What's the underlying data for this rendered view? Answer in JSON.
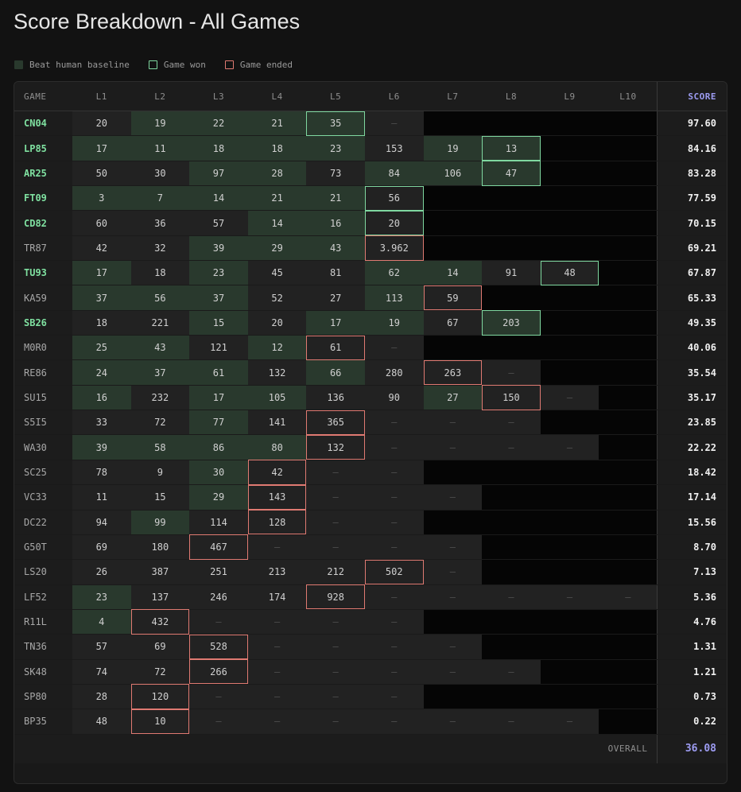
{
  "title": "Score Breakdown - All Games",
  "legend": {
    "beat": "Beat human baseline",
    "won": "Game won",
    "ended": "Game ended"
  },
  "colors": {
    "beat_fill": "#29392d",
    "won_border": "#7fd8a0",
    "ended_border": "#e07a72",
    "score_accent": "#9d9cf2",
    "won_game_text": "#7fe0a0"
  },
  "columns": [
    "GAME",
    "L1",
    "L2",
    "L3",
    "L4",
    "L5",
    "L6",
    "L7",
    "L8",
    "L9",
    "L10",
    "SCORE"
  ],
  "cell_legend": {
    "B": "beat human baseline",
    "W": "game won at this level",
    "E": "game ended at this level",
    "D": "dash — level reached but no value",
    "X": "level not available"
  },
  "rows": [
    {
      "game": "CN04",
      "won": true,
      "score": "97.60",
      "cells": [
        [
          "20",
          ""
        ],
        [
          "19",
          "B"
        ],
        [
          "22",
          "B"
        ],
        [
          "21",
          "B"
        ],
        [
          "35",
          "BW"
        ],
        [
          "—",
          "D"
        ],
        [
          "",
          "X"
        ],
        [
          "",
          "X"
        ],
        [
          "",
          "X"
        ],
        [
          "",
          "X"
        ]
      ]
    },
    {
      "game": "LP85",
      "won": true,
      "score": "84.16",
      "cells": [
        [
          "17",
          "B"
        ],
        [
          "11",
          "B"
        ],
        [
          "18",
          "B"
        ],
        [
          "18",
          "B"
        ],
        [
          "23",
          "B"
        ],
        [
          "153",
          ""
        ],
        [
          "19",
          "B"
        ],
        [
          "13",
          "BW"
        ],
        [
          "",
          "X"
        ],
        [
          "",
          "X"
        ]
      ]
    },
    {
      "game": "AR25",
      "won": true,
      "score": "83.28",
      "cells": [
        [
          "50",
          ""
        ],
        [
          "30",
          ""
        ],
        [
          "97",
          "B"
        ],
        [
          "28",
          "B"
        ],
        [
          "73",
          ""
        ],
        [
          "84",
          "B"
        ],
        [
          "106",
          "B"
        ],
        [
          "47",
          "BW"
        ],
        [
          "",
          "X"
        ],
        [
          "",
          "X"
        ]
      ]
    },
    {
      "game": "FT09",
      "won": true,
      "score": "77.59",
      "cells": [
        [
          "3",
          "B"
        ],
        [
          "7",
          "B"
        ],
        [
          "14",
          "B"
        ],
        [
          "21",
          "B"
        ],
        [
          "21",
          "B"
        ],
        [
          "56",
          "W"
        ],
        [
          "",
          "X"
        ],
        [
          "",
          "X"
        ],
        [
          "",
          "X"
        ],
        [
          "",
          "X"
        ]
      ]
    },
    {
      "game": "CD82",
      "won": true,
      "score": "70.15",
      "cells": [
        [
          "60",
          ""
        ],
        [
          "36",
          ""
        ],
        [
          "57",
          ""
        ],
        [
          "14",
          "B"
        ],
        [
          "16",
          "B"
        ],
        [
          "20",
          "W"
        ],
        [
          "",
          "X"
        ],
        [
          "",
          "X"
        ],
        [
          "",
          "X"
        ],
        [
          "",
          "X"
        ]
      ]
    },
    {
      "game": "TR87",
      "won": false,
      "score": "69.21",
      "cells": [
        [
          "42",
          ""
        ],
        [
          "32",
          ""
        ],
        [
          "39",
          "B"
        ],
        [
          "29",
          "B"
        ],
        [
          "43",
          "B"
        ],
        [
          "3.962",
          "E"
        ],
        [
          "",
          "X"
        ],
        [
          "",
          "X"
        ],
        [
          "",
          "X"
        ],
        [
          "",
          "X"
        ]
      ]
    },
    {
      "game": "TU93",
      "won": true,
      "score": "67.87",
      "cells": [
        [
          "17",
          "B"
        ],
        [
          "18",
          ""
        ],
        [
          "23",
          "B"
        ],
        [
          "45",
          ""
        ],
        [
          "81",
          ""
        ],
        [
          "62",
          "B"
        ],
        [
          "14",
          "B"
        ],
        [
          "91",
          ""
        ],
        [
          "48",
          "W"
        ],
        [
          "",
          "X"
        ]
      ]
    },
    {
      "game": "KA59",
      "won": false,
      "score": "65.33",
      "cells": [
        [
          "37",
          "B"
        ],
        [
          "56",
          "B"
        ],
        [
          "37",
          "B"
        ],
        [
          "52",
          ""
        ],
        [
          "27",
          ""
        ],
        [
          "113",
          "B"
        ],
        [
          "59",
          "E"
        ],
        [
          "",
          "X"
        ],
        [
          "",
          "X"
        ],
        [
          "",
          "X"
        ]
      ]
    },
    {
      "game": "SB26",
      "won": true,
      "score": "49.35",
      "cells": [
        [
          "18",
          ""
        ],
        [
          "221",
          ""
        ],
        [
          "15",
          "B"
        ],
        [
          "20",
          ""
        ],
        [
          "17",
          "B"
        ],
        [
          "19",
          "B"
        ],
        [
          "67",
          ""
        ],
        [
          "203",
          "BW"
        ],
        [
          "",
          "X"
        ],
        [
          "",
          "X"
        ]
      ]
    },
    {
      "game": "M0R0",
      "won": false,
      "score": "40.06",
      "cells": [
        [
          "25",
          "B"
        ],
        [
          "43",
          "B"
        ],
        [
          "121",
          ""
        ],
        [
          "12",
          "B"
        ],
        [
          "61",
          "E"
        ],
        [
          "—",
          "D"
        ],
        [
          "",
          "X"
        ],
        [
          "",
          "X"
        ],
        [
          "",
          "X"
        ],
        [
          "",
          "X"
        ]
      ]
    },
    {
      "game": "RE86",
      "won": false,
      "score": "35.54",
      "cells": [
        [
          "24",
          "B"
        ],
        [
          "37",
          "B"
        ],
        [
          "61",
          "B"
        ],
        [
          "132",
          ""
        ],
        [
          "66",
          "B"
        ],
        [
          "280",
          ""
        ],
        [
          "263",
          "E"
        ],
        [
          "—",
          "D"
        ],
        [
          "",
          "X"
        ],
        [
          "",
          "X"
        ]
      ]
    },
    {
      "game": "SU15",
      "won": false,
      "score": "35.17",
      "cells": [
        [
          "16",
          "B"
        ],
        [
          "232",
          ""
        ],
        [
          "17",
          "B"
        ],
        [
          "105",
          "B"
        ],
        [
          "136",
          ""
        ],
        [
          "90",
          ""
        ],
        [
          "27",
          "B"
        ],
        [
          "150",
          "E"
        ],
        [
          "—",
          "D"
        ],
        [
          "",
          "X"
        ]
      ]
    },
    {
      "game": "S5I5",
      "won": false,
      "score": "23.85",
      "cells": [
        [
          "33",
          ""
        ],
        [
          "72",
          ""
        ],
        [
          "77",
          "B"
        ],
        [
          "141",
          ""
        ],
        [
          "365",
          "E"
        ],
        [
          "—",
          "D"
        ],
        [
          "—",
          "D"
        ],
        [
          "—",
          "D"
        ],
        [
          "",
          "X"
        ],
        [
          "",
          "X"
        ]
      ]
    },
    {
      "game": "WA30",
      "won": false,
      "score": "22.22",
      "cells": [
        [
          "39",
          "B"
        ],
        [
          "58",
          "B"
        ],
        [
          "86",
          "B"
        ],
        [
          "80",
          "B"
        ],
        [
          "132",
          "E"
        ],
        [
          "—",
          "D"
        ],
        [
          "—",
          "D"
        ],
        [
          "—",
          "D"
        ],
        [
          "—",
          "D"
        ],
        [
          "",
          "X"
        ]
      ]
    },
    {
      "game": "SC25",
      "won": false,
      "score": "18.42",
      "cells": [
        [
          "78",
          ""
        ],
        [
          "9",
          ""
        ],
        [
          "30",
          "B"
        ],
        [
          "42",
          "E"
        ],
        [
          "—",
          "D"
        ],
        [
          "—",
          "D"
        ],
        [
          "",
          "X"
        ],
        [
          "",
          "X"
        ],
        [
          "",
          "X"
        ],
        [
          "",
          "X"
        ]
      ]
    },
    {
      "game": "VC33",
      "won": false,
      "score": "17.14",
      "cells": [
        [
          "11",
          ""
        ],
        [
          "15",
          ""
        ],
        [
          "29",
          "B"
        ],
        [
          "143",
          "E"
        ],
        [
          "—",
          "D"
        ],
        [
          "—",
          "D"
        ],
        [
          "—",
          "D"
        ],
        [
          "",
          "X"
        ],
        [
          "",
          "X"
        ],
        [
          "",
          "X"
        ]
      ]
    },
    {
      "game": "DC22",
      "won": false,
      "score": "15.56",
      "cells": [
        [
          "94",
          ""
        ],
        [
          "99",
          "B"
        ],
        [
          "114",
          ""
        ],
        [
          "128",
          "E"
        ],
        [
          "—",
          "D"
        ],
        [
          "—",
          "D"
        ],
        [
          "",
          "X"
        ],
        [
          "",
          "X"
        ],
        [
          "",
          "X"
        ],
        [
          "",
          "X"
        ]
      ]
    },
    {
      "game": "G50T",
      "won": false,
      "score": "8.70",
      "cells": [
        [
          "69",
          ""
        ],
        [
          "180",
          ""
        ],
        [
          "467",
          "E"
        ],
        [
          "—",
          "D"
        ],
        [
          "—",
          "D"
        ],
        [
          "—",
          "D"
        ],
        [
          "—",
          "D"
        ],
        [
          "",
          "X"
        ],
        [
          "",
          "X"
        ],
        [
          "",
          "X"
        ]
      ]
    },
    {
      "game": "LS20",
      "won": false,
      "score": "7.13",
      "cells": [
        [
          "26",
          ""
        ],
        [
          "387",
          ""
        ],
        [
          "251",
          ""
        ],
        [
          "213",
          ""
        ],
        [
          "212",
          ""
        ],
        [
          "502",
          "E"
        ],
        [
          "—",
          "D"
        ],
        [
          "",
          "X"
        ],
        [
          "",
          "X"
        ],
        [
          "",
          "X"
        ]
      ]
    },
    {
      "game": "LF52",
      "won": false,
      "score": "5.36",
      "cells": [
        [
          "23",
          "B"
        ],
        [
          "137",
          ""
        ],
        [
          "246",
          ""
        ],
        [
          "174",
          ""
        ],
        [
          "928",
          "E"
        ],
        [
          "—",
          "D"
        ],
        [
          "—",
          "D"
        ],
        [
          "—",
          "D"
        ],
        [
          "—",
          "D"
        ],
        [
          "—",
          "D"
        ]
      ]
    },
    {
      "game": "R11L",
      "won": false,
      "score": "4.76",
      "cells": [
        [
          "4",
          "B"
        ],
        [
          "432",
          "E"
        ],
        [
          "—",
          "D"
        ],
        [
          "—",
          "D"
        ],
        [
          "—",
          "D"
        ],
        [
          "—",
          "D"
        ],
        [
          "",
          "X"
        ],
        [
          "",
          "X"
        ],
        [
          "",
          "X"
        ],
        [
          "",
          "X"
        ]
      ]
    },
    {
      "game": "TN36",
      "won": false,
      "score": "1.31",
      "cells": [
        [
          "57",
          ""
        ],
        [
          "69",
          ""
        ],
        [
          "528",
          "E"
        ],
        [
          "—",
          "D"
        ],
        [
          "—",
          "D"
        ],
        [
          "—",
          "D"
        ],
        [
          "—",
          "D"
        ],
        [
          "",
          "X"
        ],
        [
          "",
          "X"
        ],
        [
          "",
          "X"
        ]
      ]
    },
    {
      "game": "SK48",
      "won": false,
      "score": "1.21",
      "cells": [
        [
          "74",
          ""
        ],
        [
          "72",
          ""
        ],
        [
          "266",
          "E"
        ],
        [
          "—",
          "D"
        ],
        [
          "—",
          "D"
        ],
        [
          "—",
          "D"
        ],
        [
          "—",
          "D"
        ],
        [
          "—",
          "D"
        ],
        [
          "",
          "X"
        ],
        [
          "",
          "X"
        ]
      ]
    },
    {
      "game": "SP80",
      "won": false,
      "score": "0.73",
      "cells": [
        [
          "28",
          ""
        ],
        [
          "120",
          "E"
        ],
        [
          "—",
          "D"
        ],
        [
          "—",
          "D"
        ],
        [
          "—",
          "D"
        ],
        [
          "—",
          "D"
        ],
        [
          "",
          "X"
        ],
        [
          "",
          "X"
        ],
        [
          "",
          "X"
        ],
        [
          "",
          "X"
        ]
      ]
    },
    {
      "game": "BP35",
      "won": false,
      "score": "0.22",
      "cells": [
        [
          "48",
          ""
        ],
        [
          "10",
          "E"
        ],
        [
          "—",
          "D"
        ],
        [
          "—",
          "D"
        ],
        [
          "—",
          "D"
        ],
        [
          "—",
          "D"
        ],
        [
          "—",
          "D"
        ],
        [
          "—",
          "D"
        ],
        [
          "—",
          "D"
        ],
        [
          "",
          "X"
        ]
      ]
    }
  ],
  "footer": {
    "overall_label": "OVERALL",
    "overall_value": "36.08"
  }
}
